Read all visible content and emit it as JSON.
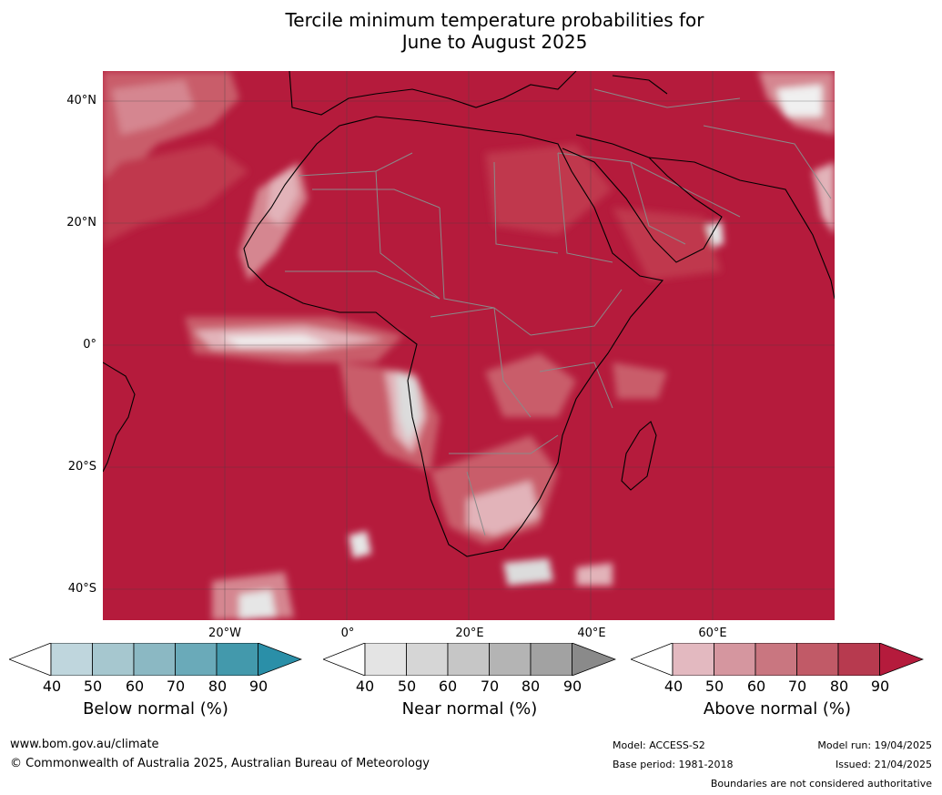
{
  "title_line1": "Tercile minimum temperature probabilities for",
  "title_line2": "June to August 2025",
  "lat_labels": [
    "40°N",
    "20°N",
    "0°",
    "20°S",
    "40°S"
  ],
  "lon_labels": [
    "20°W",
    "0°",
    "20°E",
    "40°E",
    "60°E"
  ],
  "colorbars": [
    {
      "title": "Below normal (%)",
      "ticks": [
        "40",
        "50",
        "60",
        "70",
        "80",
        "90"
      ],
      "colors": [
        "#bfd6dd",
        "#a6c7cf",
        "#8bb8c3",
        "#6aaab9",
        "#4399ac",
        "#2a8fa8"
      ]
    },
    {
      "title": "Near normal (%)",
      "ticks": [
        "40",
        "50",
        "60",
        "70",
        "80",
        "90"
      ],
      "colors": [
        "#e4e4e4",
        "#d6d6d6",
        "#c6c6c6",
        "#b4b4b4",
        "#a2a2a2",
        "#8a8a8a"
      ]
    },
    {
      "title": "Above normal (%)",
      "ticks": [
        "40",
        "50",
        "60",
        "70",
        "80",
        "90"
      ],
      "colors": [
        "#e3b9c0",
        "#d5969f",
        "#c97680",
        "#c15a67",
        "#b73a4f",
        "#b51b3c"
      ]
    }
  ],
  "footer": {
    "url": "www.bom.gov.au/climate",
    "copyright": "© Commonwealth of Australia 2025, Australian Bureau of Meteorology",
    "model": "Model: ACCESS-S2",
    "base_period": "Base period: 1981-2018",
    "model_run": "Model run: 19/04/2025",
    "issued": "Issued: 21/04/2025",
    "disclaimer": "Boundaries are not considered authoritative"
  },
  "colors": {
    "above_90": "#b51b3c",
    "above_80": "#c0384e",
    "above_70": "#c95d6b",
    "above_60": "#d58690",
    "above_50": "#e2b3b9",
    "near_high": "#d9d9d9",
    "coast": "#000000",
    "border": "#8a8a8a",
    "grid": "#444444"
  }
}
